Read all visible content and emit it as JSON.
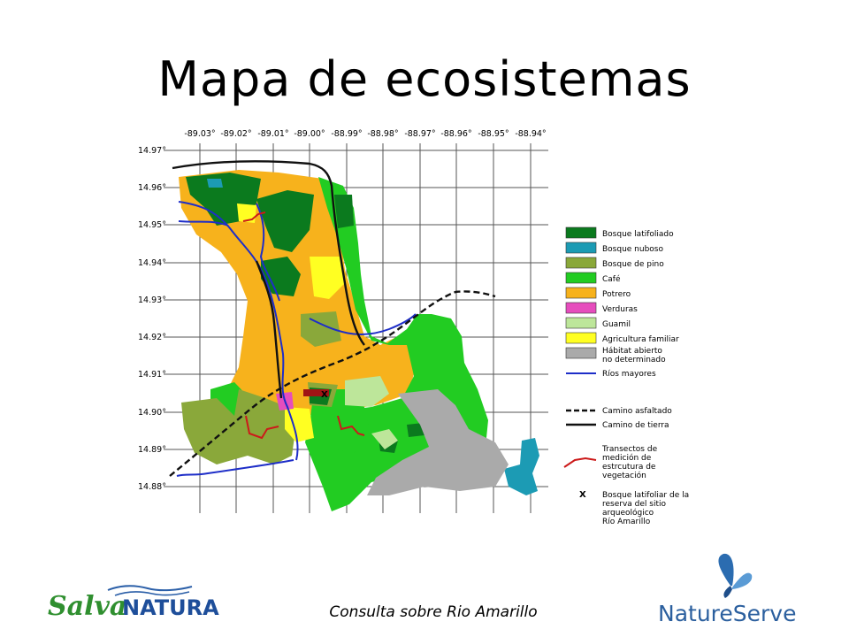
{
  "slide": {
    "title": "Mapa de ecosistemas",
    "footer": "Consulta sobre Rio Amarillo"
  },
  "map": {
    "lon_labels": [
      "-89.03°",
      "-89.02°",
      "-89.01°",
      "-89.00°",
      "-88.99°",
      "-88.98°",
      "-88.97°",
      "-88.96°",
      "-88.95°",
      "-88.94°"
    ],
    "lat_labels": [
      "14.97°",
      "14.96°",
      "14.95°",
      "14.94°",
      "14.93°",
      "14.92°",
      "14.91°",
      "14.90°",
      "14.89°",
      "14.88°"
    ],
    "site_marker": "X",
    "legend": [
      {
        "label": "Bosque latifoliado",
        "color": "#0b7a1e"
      },
      {
        "label": "Bosque nuboso",
        "color": "#1c9bb4"
      },
      {
        "label": "Bosque de pino",
        "color": "#8aa83a"
      },
      {
        "label": "Café",
        "color": "#22cc22"
      },
      {
        "label": "Potrero",
        "color": "#f7b21c"
      },
      {
        "label": "Verduras",
        "color": "#e64dbd"
      },
      {
        "label": "Guamil",
        "color": "#bde69a"
      },
      {
        "label": "Agricultura familiar",
        "color": "#ffff22"
      },
      {
        "label": "Hábitat abierto",
        "label2": "no determinado",
        "color": "#aaaaaa"
      }
    ],
    "legend_lines": {
      "rios": "Ríos mayores",
      "asfaltado": "Camino asfaltado",
      "tierra": "Camino de tierra",
      "transectos": [
        "Transectos de",
        "medición de",
        "estrcutura de",
        "vegetación"
      ],
      "bosque_x": [
        "Bosque latifoliar de la",
        "reserva del sitio",
        "arqueológico",
        "Río Amarillo"
      ]
    }
  },
  "logos": {
    "left": {
      "part1": "Salva",
      "part2": "NATURA"
    },
    "right": {
      "text": "NatureServe"
    }
  }
}
